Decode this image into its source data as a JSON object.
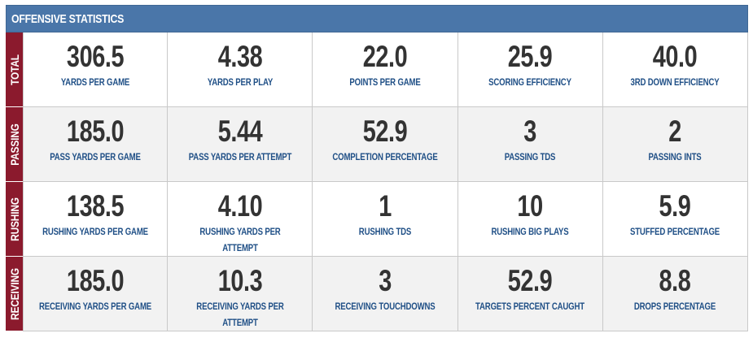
{
  "header": {
    "title": "OFFENSIVE STATISTICS"
  },
  "colors": {
    "header_bg": "#4a76a9",
    "row_label_bg": "#8b1a2d",
    "value_text": "#333333",
    "label_text": "#1f4f86"
  },
  "rows": [
    {
      "label": "TOTAL",
      "stats": [
        {
          "value": "306.5",
          "label": "YARDS PER GAME"
        },
        {
          "value": "4.38",
          "label": "YARDS PER PLAY"
        },
        {
          "value": "22.0",
          "label": "POINTS PER GAME"
        },
        {
          "value": "25.9",
          "label": "SCORING EFFICIENCY"
        },
        {
          "value": "40.0",
          "label": "3RD DOWN EFFICIENCY"
        }
      ]
    },
    {
      "label": "PASSING",
      "stats": [
        {
          "value": "185.0",
          "label": "PASS YARDS PER GAME"
        },
        {
          "value": "5.44",
          "label": "PASS YARDS PER ATTEMPT"
        },
        {
          "value": "52.9",
          "label": "COMPLETION PERCENTAGE"
        },
        {
          "value": "3",
          "label": "PASSING TDS"
        },
        {
          "value": "2",
          "label": "PASSING INTS"
        }
      ]
    },
    {
      "label": "RUSHING",
      "stats": [
        {
          "value": "138.5",
          "label": "RUSHING YARDS PER GAME"
        },
        {
          "value": "4.10",
          "label": "RUSHING YARDS PER ATTEMPT"
        },
        {
          "value": "1",
          "label": "RUSHING TDS"
        },
        {
          "value": "10",
          "label": "RUSHING BIG PLAYS"
        },
        {
          "value": "5.9",
          "label": "STUFFED PERCENTAGE"
        }
      ]
    },
    {
      "label": "RECEIVING",
      "stats": [
        {
          "value": "185.0",
          "label": "RECEIVING YARDS PER GAME"
        },
        {
          "value": "10.3",
          "label": "RECEIVING YARDS PER ATTEMPT"
        },
        {
          "value": "3",
          "label": "RECEIVING TOUCHDOWNS"
        },
        {
          "value": "52.9",
          "label": "TARGETS PERCENT CAUGHT"
        },
        {
          "value": "8.8",
          "label": "DROPS PERCENTAGE"
        }
      ]
    }
  ]
}
